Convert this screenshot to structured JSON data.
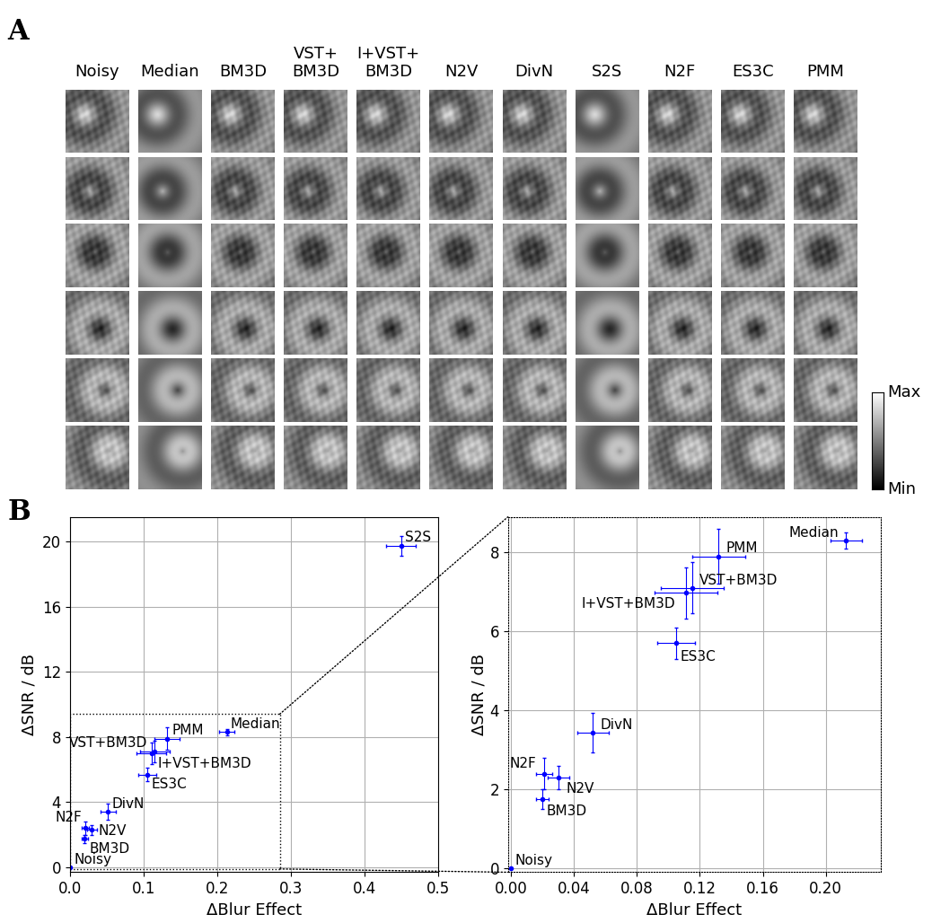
{
  "panel_labels": [
    "A",
    "B"
  ],
  "image_grid": {
    "columns": [
      "Noisy",
      "Median",
      "BM3D",
      "VST+\nBM3D",
      "I+VST+\nBM3D",
      "N2V",
      "DivN",
      "S2S",
      "N2F",
      "ES3C",
      "PMM"
    ],
    "rows": 6,
    "colorbar": {
      "max_label": "Max",
      "min_label": "Min"
    }
  },
  "chart_data": [
    {
      "type": "scatter",
      "x_label": "ΔBlur Effect",
      "y_label": "ΔSNR / dB",
      "xlim": [
        0,
        0.5
      ],
      "ylim": [
        -0.3,
        21.5
      ],
      "xticks": [
        {
          "value": 0,
          "label": "0.0"
        },
        0.1,
        0.2,
        0.3,
        0.4,
        0.5
      ],
      "yticks": [
        0,
        4,
        8,
        12,
        16,
        20
      ],
      "grid": true,
      "color": "blue",
      "marker": "o",
      "inset_region": {
        "xlim": [
          0,
          0.285
        ],
        "ylim": [
          -0.1,
          9.4
        ]
      },
      "points": [
        {
          "label": "Noisy",
          "x": 0.0,
          "y": 0.0,
          "x_err": 0.0,
          "y_err": 0.0
        },
        {
          "label": "Median",
          "x": 0.213,
          "y": 8.3,
          "x_err": 0.01,
          "y_err": 0.2
        },
        {
          "label": "BM3D",
          "x": 0.02,
          "y": 1.75,
          "x_err": 0.004,
          "y_err": 0.25
        },
        {
          "label": "VST+BM3D",
          "x": 0.115,
          "y": 7.1,
          "x_err": 0.02,
          "y_err": 0.65
        },
        {
          "label": "I+VST+BM3D",
          "x": 0.111,
          "y": 6.98,
          "x_err": 0.02,
          "y_err": 0.65
        },
        {
          "label": "N2V",
          "x": 0.03,
          "y": 2.3,
          "x_err": 0.007,
          "y_err": 0.3
        },
        {
          "label": "DivN",
          "x": 0.052,
          "y": 3.43,
          "x_err": 0.01,
          "y_err": 0.5
        },
        {
          "label": "S2S",
          "x": 0.45,
          "y": 19.7,
          "x_err": 0.02,
          "y_err": 0.6
        },
        {
          "label": "N2F",
          "x": 0.021,
          "y": 2.4,
          "x_err": 0.005,
          "y_err": 0.4
        },
        {
          "label": "ES3C",
          "x": 0.105,
          "y": 5.7,
          "x_err": 0.012,
          "y_err": 0.4
        },
        {
          "label": "PMM",
          "x": 0.132,
          "y": 7.9,
          "x_err": 0.017,
          "y_err": 0.7
        }
      ]
    },
    {
      "type": "scatter",
      "x_label": "ΔBlur Effect",
      "y_label": "ΔSNR / dB",
      "xlim": [
        -0.002,
        0.235
      ],
      "ylim": [
        -0.1,
        8.9
      ],
      "xticks": [
        {
          "value": 0,
          "label": "0.00"
        },
        {
          "value": 0.04,
          "label": "0.04"
        },
        {
          "value": 0.08,
          "label": "0.08"
        },
        {
          "value": 0.12,
          "label": "0.12"
        },
        {
          "value": 0.16,
          "label": "0.16"
        },
        {
          "value": 0.2,
          "label": "0.20"
        }
      ],
      "yticks": [
        0,
        2,
        4,
        6,
        8
      ],
      "grid": true,
      "color": "blue",
      "marker": "o",
      "points": [
        {
          "label": "Noisy",
          "x": 0.0,
          "y": 0.0,
          "x_err": 0.0,
          "y_err": 0.0
        },
        {
          "label": "Median",
          "x": 0.213,
          "y": 8.3,
          "x_err": 0.01,
          "y_err": 0.2
        },
        {
          "label": "BM3D",
          "x": 0.02,
          "y": 1.75,
          "x_err": 0.004,
          "y_err": 0.25
        },
        {
          "label": "VST+BM3D",
          "x": 0.115,
          "y": 7.1,
          "x_err": 0.02,
          "y_err": 0.65
        },
        {
          "label": "I+VST+BM3D",
          "x": 0.111,
          "y": 6.98,
          "x_err": 0.02,
          "y_err": 0.65
        },
        {
          "label": "N2V",
          "x": 0.03,
          "y": 2.3,
          "x_err": 0.007,
          "y_err": 0.3
        },
        {
          "label": "DivN",
          "x": 0.052,
          "y": 3.43,
          "x_err": 0.01,
          "y_err": 0.5
        },
        {
          "label": "N2F",
          "x": 0.021,
          "y": 2.4,
          "x_err": 0.005,
          "y_err": 0.4
        },
        {
          "label": "ES3C",
          "x": 0.105,
          "y": 5.7,
          "x_err": 0.012,
          "y_err": 0.4
        },
        {
          "label": "PMM",
          "x": 0.132,
          "y": 7.9,
          "x_err": 0.017,
          "y_err": 0.7
        }
      ]
    }
  ]
}
